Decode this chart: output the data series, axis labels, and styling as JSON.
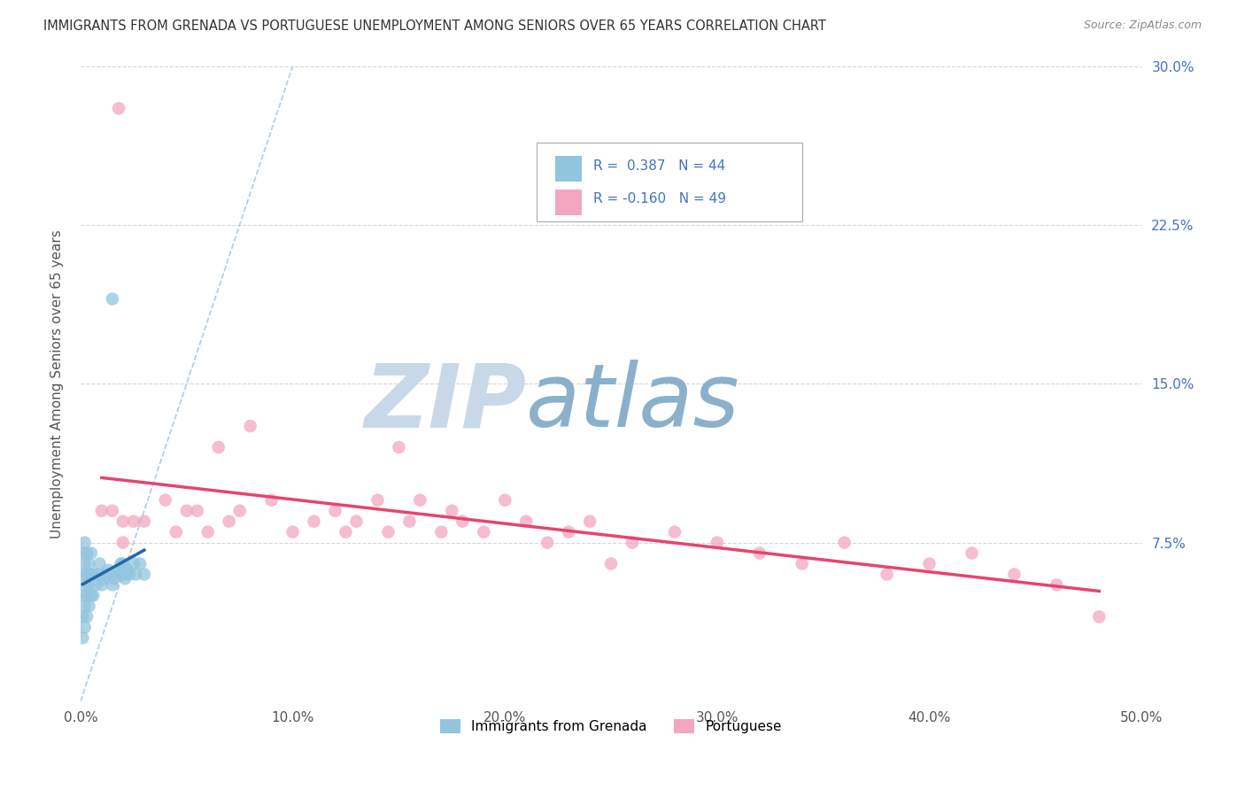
{
  "title": "IMMIGRANTS FROM GRENADA VS PORTUGUESE UNEMPLOYMENT AMONG SENIORS OVER 65 YEARS CORRELATION CHART",
  "source": "Source: ZipAtlas.com",
  "ylabel": "Unemployment Among Seniors over 65 years",
  "xlim": [
    0,
    0.5
  ],
  "ylim": [
    0,
    0.3
  ],
  "xticks": [
    0.0,
    0.1,
    0.2,
    0.3,
    0.4,
    0.5
  ],
  "xticklabels": [
    "0.0%",
    "10.0%",
    "20.0%",
    "30.0%",
    "40.0%",
    "50.0%"
  ],
  "yticks": [
    0.075,
    0.15,
    0.225,
    0.3
  ],
  "yticklabels": [
    "7.5%",
    "15.0%",
    "22.5%",
    "30.0%"
  ],
  "legend_r1": "R =  0.387   N = 44",
  "legend_r2": "R = -0.160   N = 49",
  "color_blue": "#92c5de",
  "color_pink": "#f4a6c0",
  "trend_color_blue": "#2166ac",
  "trend_color_pink": "#e8436e",
  "diagonal_color": "#9ecae1",
  "watermark_zip": "ZIP",
  "watermark_atlas": "atlas",
  "watermark_color_zip": "#c8d8e8",
  "watermark_color_atlas": "#8ab0cc",
  "blue_x": [
    0.001,
    0.001,
    0.001,
    0.001,
    0.001,
    0.002,
    0.002,
    0.002,
    0.002,
    0.002,
    0.003,
    0.003,
    0.003,
    0.003,
    0.004,
    0.004,
    0.004,
    0.005,
    0.005,
    0.005,
    0.006,
    0.006,
    0.007,
    0.008,
    0.009,
    0.01,
    0.011,
    0.012,
    0.013,
    0.015,
    0.016,
    0.017,
    0.018,
    0.019,
    0.02,
    0.02,
    0.021,
    0.022,
    0.023,
    0.025,
    0.026,
    0.028,
    0.03,
    0.015
  ],
  "blue_y": [
    0.03,
    0.04,
    0.05,
    0.06,
    0.07,
    0.035,
    0.045,
    0.055,
    0.065,
    0.075,
    0.04,
    0.05,
    0.06,
    0.07,
    0.045,
    0.055,
    0.065,
    0.05,
    0.06,
    0.07,
    0.05,
    0.06,
    0.055,
    0.06,
    0.065,
    0.055,
    0.058,
    0.06,
    0.062,
    0.055,
    0.058,
    0.06,
    0.062,
    0.065,
    0.06,
    0.065,
    0.058,
    0.062,
    0.06,
    0.065,
    0.06,
    0.065,
    0.06,
    0.19
  ],
  "pink_x": [
    0.02,
    0.01,
    0.015,
    0.02,
    0.025,
    0.03,
    0.04,
    0.045,
    0.05,
    0.055,
    0.06,
    0.065,
    0.07,
    0.075,
    0.08,
    0.09,
    0.1,
    0.11,
    0.12,
    0.125,
    0.13,
    0.14,
    0.145,
    0.15,
    0.155,
    0.16,
    0.17,
    0.175,
    0.18,
    0.19,
    0.2,
    0.21,
    0.22,
    0.23,
    0.24,
    0.25,
    0.26,
    0.28,
    0.3,
    0.32,
    0.34,
    0.36,
    0.38,
    0.4,
    0.42,
    0.44,
    0.46,
    0.48,
    0.018
  ],
  "pink_y": [
    0.085,
    0.09,
    0.09,
    0.075,
    0.085,
    0.085,
    0.095,
    0.08,
    0.09,
    0.09,
    0.08,
    0.12,
    0.085,
    0.09,
    0.13,
    0.095,
    0.08,
    0.085,
    0.09,
    0.08,
    0.085,
    0.095,
    0.08,
    0.12,
    0.085,
    0.095,
    0.08,
    0.09,
    0.085,
    0.08,
    0.095,
    0.085,
    0.075,
    0.08,
    0.085,
    0.065,
    0.075,
    0.08,
    0.075,
    0.07,
    0.065,
    0.075,
    0.06,
    0.065,
    0.07,
    0.06,
    0.055,
    0.04,
    0.28
  ]
}
